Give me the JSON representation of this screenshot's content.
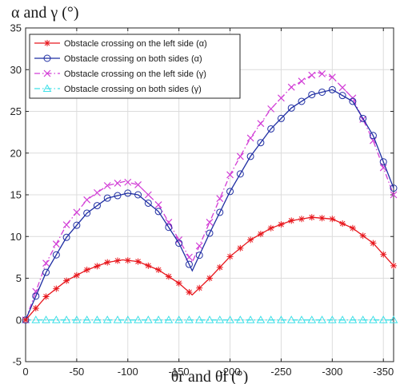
{
  "chart_data": {
    "type": "line",
    "ylabel": "α and γ (°)",
    "xlabel": "θr and θl (°)",
    "xlim": [
      0,
      -360
    ],
    "ylim": [
      -5,
      35
    ],
    "x_ticks": [
      0,
      -50,
      -100,
      -150,
      -200,
      -250,
      -300,
      -350
    ],
    "x_tick_labels": [
      "0",
      "-50",
      "-100",
      "-150",
      "-200",
      "-250",
      "-300",
      "-350"
    ],
    "y_ticks": [
      -5,
      0,
      5,
      10,
      15,
      20,
      25,
      30,
      35
    ],
    "y_tick_labels": [
      "-5",
      "0",
      "5",
      "10",
      "15",
      "20",
      "25",
      "30",
      "35"
    ],
    "grid": true,
    "legend_position": "top-left",
    "series": [
      {
        "name": "Obstacle crossing on the left side (α)",
        "color": "#e8171d",
        "marker": "asterisk",
        "dash": "solid",
        "x": [
          0,
          -20,
          -40,
          -60,
          -80,
          -95,
          -110,
          -130,
          -150,
          -163,
          -180,
          -200,
          -220,
          -240,
          -260,
          -280,
          -300,
          -320,
          -340,
          -360
        ],
        "y": [
          0,
          2.8,
          4.7,
          6.0,
          6.9,
          7.2,
          7.0,
          6.0,
          4.4,
          3.0,
          5.0,
          7.6,
          9.6,
          11.0,
          11.9,
          12.3,
          12.1,
          11.0,
          9.2,
          6.5
        ]
      },
      {
        "name": "Obstacle crossing on both sides (α)",
        "color": "#1f2ea3",
        "marker": "circle",
        "dash": "solid",
        "x": [
          0,
          -20,
          -40,
          -60,
          -80,
          -100,
          -110,
          -130,
          -150,
          -163,
          -180,
          -200,
          -220,
          -240,
          -260,
          -280,
          -300,
          -320,
          -340,
          -360
        ],
        "y": [
          0,
          5.7,
          9.9,
          12.8,
          14.6,
          15.2,
          15.0,
          13.0,
          9.2,
          5.9,
          10.4,
          15.4,
          19.6,
          22.9,
          25.4,
          27.0,
          27.6,
          26.2,
          22.1,
          15.8
        ]
      },
      {
        "name": "Obstacle crossing on the left side (γ)",
        "color": "#d23ed6",
        "marker": "cross",
        "dash": "dashdot",
        "x": [
          0,
          -20,
          -40,
          -60,
          -80,
          -97,
          -110,
          -130,
          -150,
          -163,
          -180,
          -200,
          -220,
          -240,
          -260,
          -285,
          -300,
          -320,
          -340,
          -360
        ],
        "y": [
          0,
          6.8,
          11.4,
          14.4,
          16.1,
          16.6,
          16.2,
          13.8,
          9.6,
          6.9,
          11.7,
          17.4,
          21.8,
          25.3,
          27.9,
          29.7,
          29.1,
          26.6,
          21.5,
          15.0
        ]
      },
      {
        "name": "Obstacle crossing on both sides (γ)",
        "color": "#3fe0e8",
        "marker": "triangle",
        "dash": "dashdot",
        "x": [
          0,
          -360
        ],
        "y": [
          0,
          0
        ]
      }
    ]
  }
}
